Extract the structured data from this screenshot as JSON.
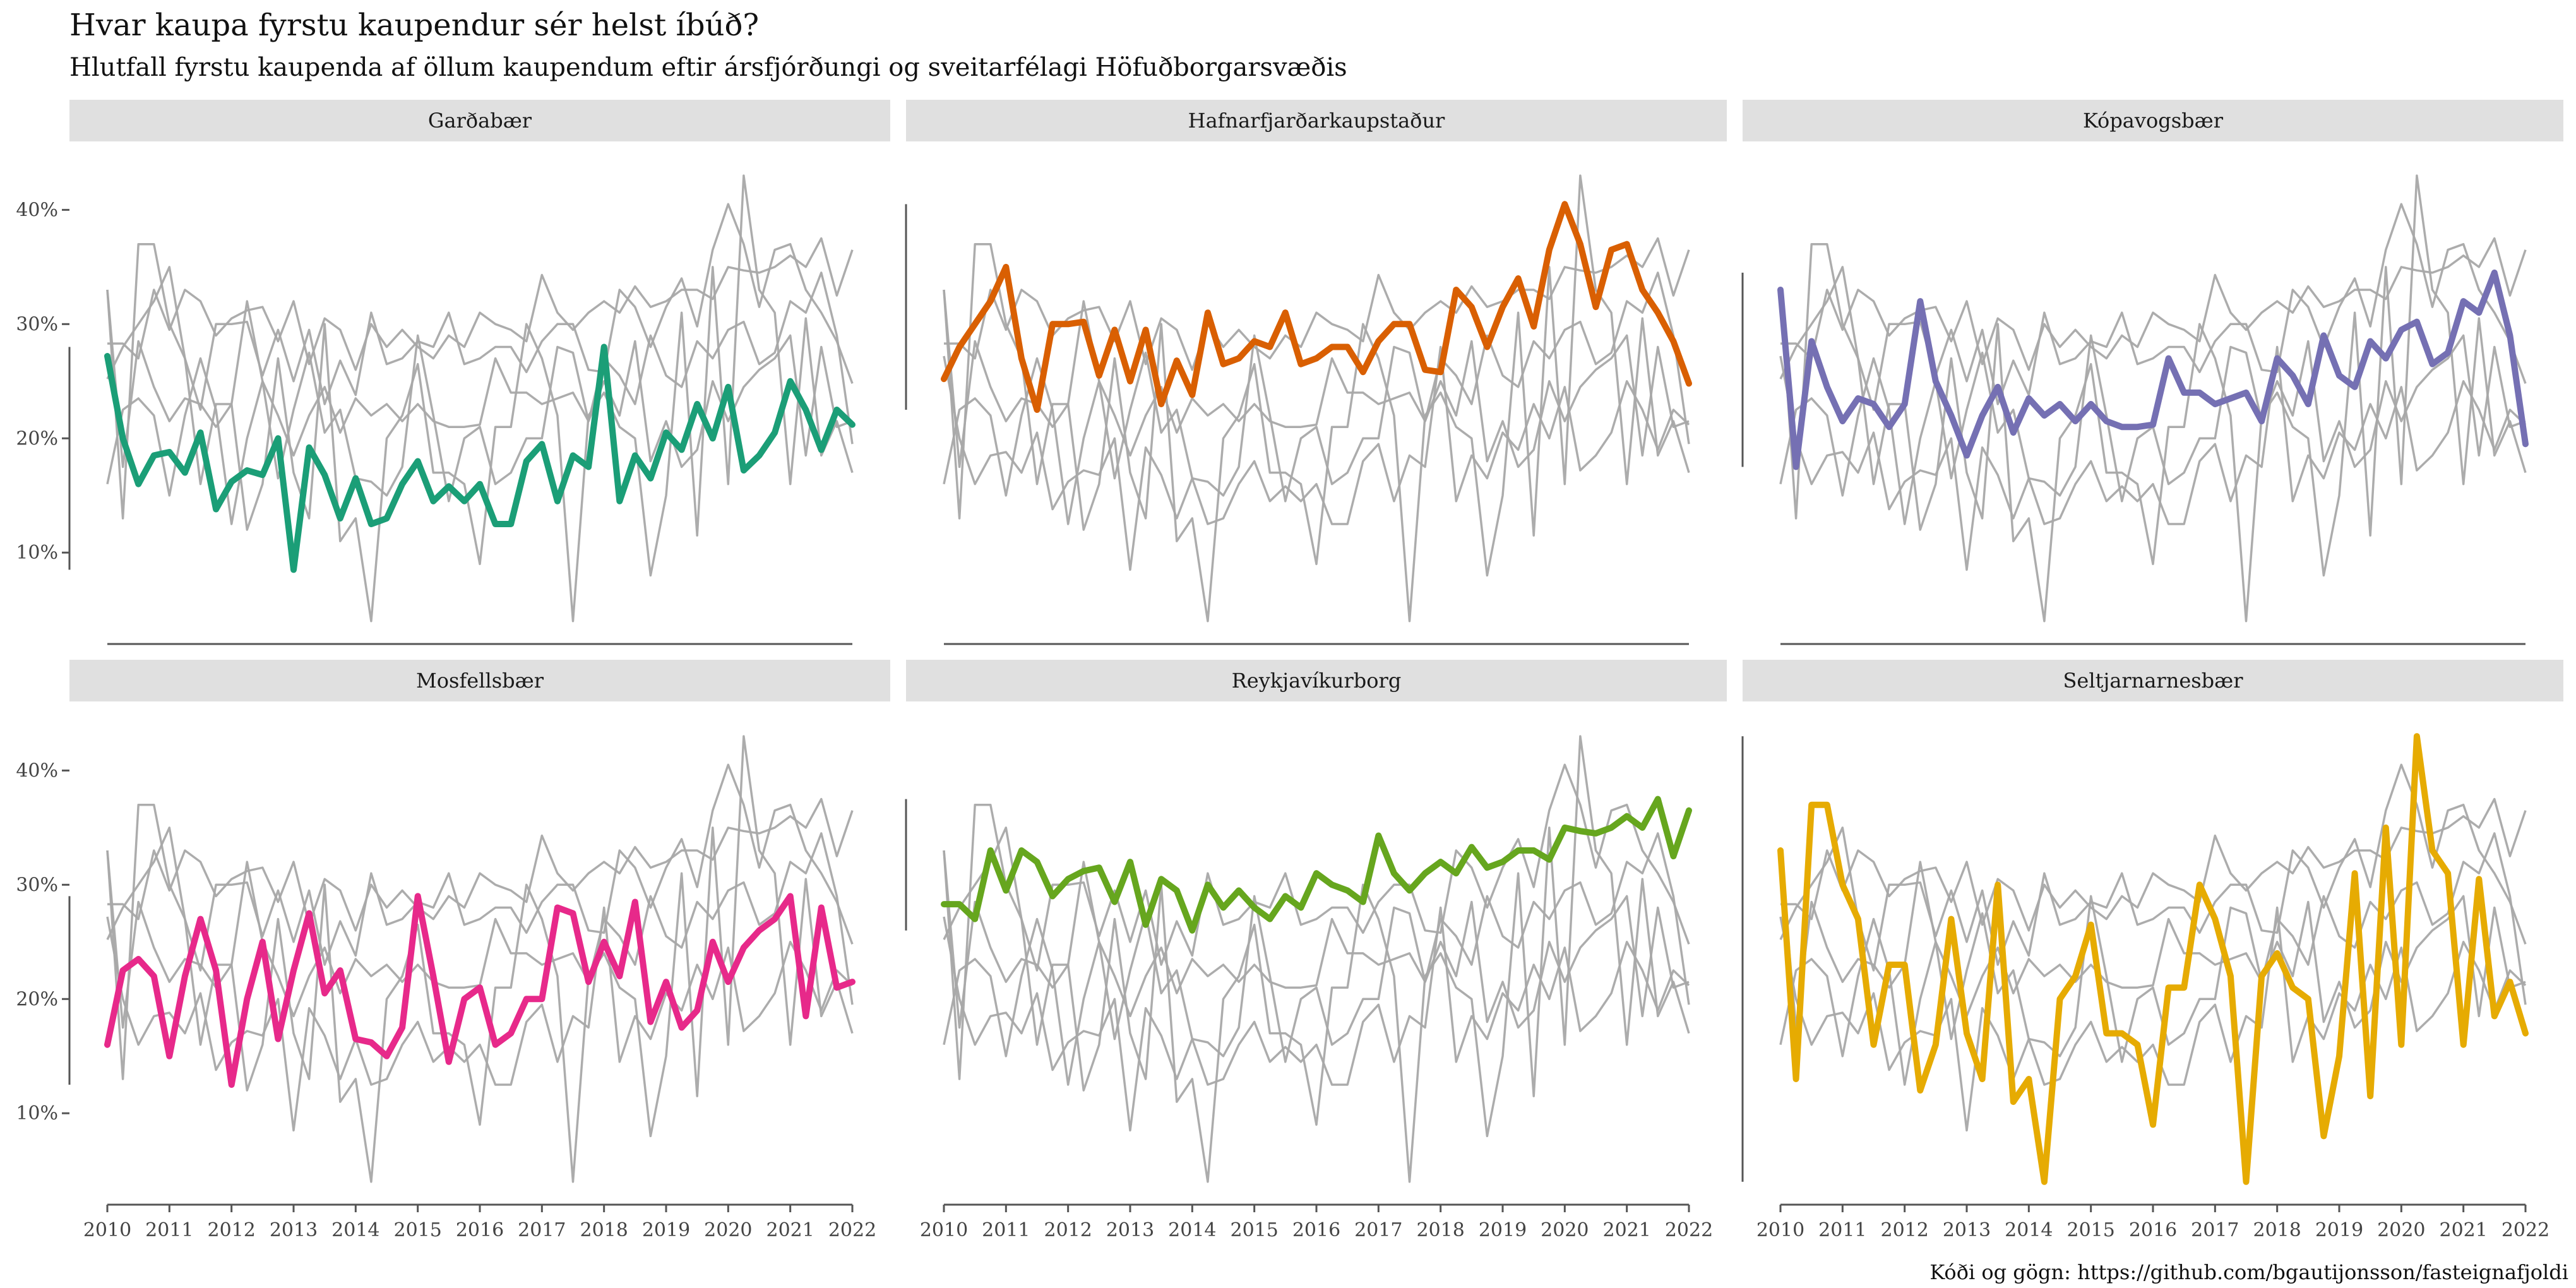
{
  "title": "Hvar kaupa fyrstu kaupendur sér helst íbúð?",
  "subtitle": "Hlutfall fyrstu kaupenda af öllum kaupendum eftir ársfjórðungi og sveitarfélagi Höfuðborgarsvæðis",
  "caption": "Kóði og gögn: https://github.com/bgautijonsson/fasteignafjoldi",
  "chart_data": {
    "type": "line",
    "facet_layout": "3 columns x 2 rows, shared axes",
    "x_unit": "year (quarterly observations, 2010.00 = Q1 2010)",
    "x": [
      2010.0,
      2010.25,
      2010.5,
      2010.75,
      2011.0,
      2011.25,
      2011.5,
      2011.75,
      2012.0,
      2012.25,
      2012.5,
      2012.75,
      2013.0,
      2013.25,
      2013.5,
      2013.75,
      2014.0,
      2014.25,
      2014.5,
      2014.75,
      2015.0,
      2015.25,
      2015.5,
      2015.75,
      2016.0,
      2016.25,
      2016.5,
      2016.75,
      2017.0,
      2017.25,
      2017.5,
      2017.75,
      2018.0,
      2018.25,
      2018.5,
      2018.75,
      2019.0,
      2019.25,
      2019.5,
      2019.75,
      2020.0,
      2020.25,
      2020.5,
      2020.75,
      2021.0,
      2021.25,
      2021.5,
      2021.75,
      2022.0
    ],
    "xlim": [
      2010,
      2022
    ],
    "x_ticks": [
      2010,
      2011,
      2012,
      2013,
      2014,
      2015,
      2016,
      2017,
      2018,
      2019,
      2020,
      2021,
      2022
    ],
    "ylim": [
      0.02,
      0.44
    ],
    "y_ticks": [
      0.1,
      0.2,
      0.3,
      0.4
    ],
    "y_tick_labels": [
      "10%",
      "20%",
      "30%",
      "40%"
    ],
    "xlabel": "",
    "ylabel": "",
    "grid": false,
    "legend": "none",
    "background_line_color": "#a8a8a8",
    "series": [
      {
        "name": "Garðabær",
        "color": "#1b9e77",
        "values": [
          0.272,
          0.2,
          0.16,
          0.185,
          0.188,
          0.17,
          0.205,
          0.138,
          0.162,
          0.172,
          0.168,
          0.2,
          0.085,
          0.192,
          0.168,
          0.13,
          0.165,
          0.125,
          0.13,
          0.16,
          0.18,
          0.145,
          0.158,
          0.145,
          0.16,
          0.125,
          0.125,
          0.18,
          0.195,
          0.145,
          0.185,
          0.175,
          0.28,
          0.145,
          0.185,
          0.165,
          0.205,
          0.19,
          0.23,
          0.2,
          0.245,
          0.172,
          0.185,
          0.205,
          0.25,
          0.225,
          0.19,
          0.225,
          0.212
        ]
      },
      {
        "name": "Hafnarfjarðarkaupstaður",
        "color": "#d95f02",
        "values": [
          0.252,
          0.28,
          0.3,
          0.32,
          0.35,
          0.27,
          0.225,
          0.3,
          0.3,
          0.302,
          0.255,
          0.295,
          0.25,
          0.295,
          0.23,
          0.268,
          0.238,
          0.31,
          0.265,
          0.27,
          0.285,
          0.28,
          0.31,
          0.265,
          0.27,
          0.28,
          0.28,
          0.258,
          0.285,
          0.3,
          0.3,
          0.26,
          0.258,
          0.33,
          0.315,
          0.28,
          0.315,
          0.34,
          0.298,
          0.365,
          0.405,
          0.37,
          0.315,
          0.365,
          0.37,
          0.33,
          0.31,
          0.285,
          0.248
        ]
      },
      {
        "name": "Kópavogsbær",
        "color": "#7570b3",
        "values": [
          0.33,
          0.175,
          0.285,
          0.245,
          0.215,
          0.235,
          0.23,
          0.21,
          0.23,
          0.32,
          0.25,
          0.22,
          0.185,
          0.22,
          0.245,
          0.205,
          0.235,
          0.22,
          0.23,
          0.215,
          0.23,
          0.215,
          0.21,
          0.21,
          0.212,
          0.27,
          0.24,
          0.24,
          0.23,
          0.235,
          0.24,
          0.215,
          0.27,
          0.255,
          0.23,
          0.29,
          0.255,
          0.245,
          0.285,
          0.27,
          0.295,
          0.302,
          0.265,
          0.275,
          0.32,
          0.31,
          0.345,
          0.29,
          0.195
        ]
      },
      {
        "name": "Mosfellsbær",
        "color": "#e7298a",
        "values": [
          0.16,
          0.225,
          0.235,
          0.22,
          0.15,
          0.22,
          0.27,
          0.225,
          0.125,
          0.2,
          0.25,
          0.165,
          0.225,
          0.275,
          0.205,
          0.225,
          0.165,
          0.162,
          0.15,
          0.175,
          0.29,
          0.22,
          0.145,
          0.2,
          0.21,
          0.16,
          0.17,
          0.2,
          0.2,
          0.28,
          0.275,
          0.215,
          0.25,
          0.22,
          0.285,
          0.18,
          0.215,
          0.175,
          0.19,
          0.25,
          0.215,
          0.245,
          0.26,
          0.27,
          0.29,
          0.185,
          0.28,
          0.21,
          0.215
        ]
      },
      {
        "name": "Reykjavíkurborg",
        "color": "#66a61e",
        "values": [
          0.283,
          0.283,
          0.27,
          0.33,
          0.295,
          0.33,
          0.32,
          0.29,
          0.305,
          0.312,
          0.315,
          0.285,
          0.32,
          0.265,
          0.305,
          0.295,
          0.26,
          0.3,
          0.28,
          0.295,
          0.28,
          0.27,
          0.29,
          0.28,
          0.31,
          0.3,
          0.295,
          0.285,
          0.343,
          0.31,
          0.295,
          0.31,
          0.32,
          0.31,
          0.333,
          0.315,
          0.32,
          0.33,
          0.33,
          0.322,
          0.35,
          0.347,
          0.345,
          0.35,
          0.36,
          0.35,
          0.375,
          0.325,
          0.365
        ]
      },
      {
        "name": "Seltjarnarnesbær",
        "color": "#e6ab02",
        "values": [
          0.33,
          0.13,
          0.37,
          0.37,
          0.3,
          0.27,
          0.16,
          0.23,
          0.23,
          0.12,
          0.16,
          0.27,
          0.17,
          0.13,
          0.3,
          0.11,
          0.13,
          0.04,
          0.2,
          0.22,
          0.265,
          0.17,
          0.17,
          0.16,
          0.09,
          0.21,
          0.21,
          0.3,
          0.27,
          0.22,
          0.04,
          0.22,
          0.24,
          0.21,
          0.2,
          0.08,
          0.15,
          0.31,
          0.115,
          0.35,
          0.16,
          0.43,
          0.33,
          0.31,
          0.16,
          0.305,
          0.185,
          0.215,
          0.17
        ]
      }
    ]
  }
}
